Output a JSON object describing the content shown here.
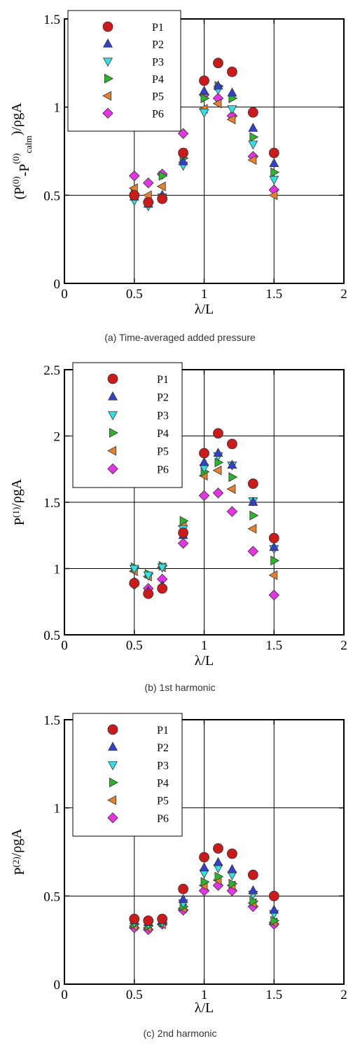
{
  "chart_data": [
    {
      "type": "scatter",
      "caption": "(a) Time-averaged added pressure",
      "xlabel": "λ/L",
      "ylabel": {
        "base": "(P",
        "sup1": "(0)",
        "mid": "-P",
        "sup2": "(0)",
        "sub": "calm",
        "tail": ")/ρgA"
      },
      "xlim": [
        0,
        2
      ],
      "ylim": [
        0,
        1.5
      ],
      "xticks": [
        {
          "v": 0,
          "label": "0"
        },
        {
          "v": 0.5,
          "label": "0.5"
        },
        {
          "v": 1,
          "label": "1"
        },
        {
          "v": 1.5,
          "label": "1.5"
        },
        {
          "v": 2,
          "label": "2"
        }
      ],
      "yticks": [
        {
          "v": 0,
          "label": "0"
        },
        {
          "v": 0.5,
          "label": "0.5"
        },
        {
          "v": 1,
          "label": "1"
        },
        {
          "v": 1.5,
          "label": "1.5"
        }
      ],
      "grid": true,
      "legend": "top-left",
      "x": [
        0.5,
        0.6,
        0.7,
        0.85,
        1.0,
        1.1,
        1.2,
        1.35,
        1.5
      ],
      "series": [
        {
          "name": "P1",
          "values": [
            0.5,
            0.46,
            0.48,
            0.74,
            1.15,
            1.25,
            1.2,
            0.97,
            0.74
          ]
        },
        {
          "name": "P2",
          "values": [
            0.49,
            0.45,
            0.5,
            0.69,
            1.09,
            1.12,
            1.08,
            0.88,
            0.68
          ]
        },
        {
          "name": "P3",
          "values": [
            0.47,
            0.44,
            0.49,
            0.67,
            0.97,
            1.1,
            0.99,
            0.79,
            0.59
          ]
        },
        {
          "name": "P4",
          "values": [
            0.51,
            0.46,
            0.61,
            0.71,
            1.05,
            1.12,
            1.05,
            0.83,
            0.63
          ]
        },
        {
          "name": "P5",
          "values": [
            0.54,
            0.5,
            0.55,
            0.74,
            0.99,
            1.02,
            0.93,
            0.7,
            0.5
          ]
        },
        {
          "name": "P6",
          "values": [
            0.61,
            0.57,
            0.62,
            0.85,
            1.07,
            1.05,
            0.95,
            0.72,
            0.53
          ]
        }
      ]
    },
    {
      "type": "scatter",
      "caption": "(b) 1st harmonic",
      "xlabel": "λ/L",
      "ylabel": {
        "base": "P",
        "sup1": "(1)",
        "tail": "/ρgA"
      },
      "xlim": [
        0,
        2
      ],
      "ylim": [
        0.5,
        2.5
      ],
      "xticks": [
        {
          "v": 0,
          "label": "0"
        },
        {
          "v": 0.5,
          "label": "0.5"
        },
        {
          "v": 1,
          "label": "1"
        },
        {
          "v": 1.5,
          "label": "1.5"
        },
        {
          "v": 2,
          "label": "2"
        }
      ],
      "yticks": [
        {
          "v": 0.5,
          "label": "0.5"
        },
        {
          "v": 1,
          "label": "1"
        },
        {
          "v": 1.5,
          "label": "1.5"
        },
        {
          "v": 2,
          "label": "2"
        },
        {
          "v": 2.5,
          "label": "2.5"
        }
      ],
      "grid": true,
      "legend": "top-left",
      "x": [
        0.5,
        0.6,
        0.7,
        0.85,
        1.0,
        1.1,
        1.2,
        1.35,
        1.5
      ],
      "series": [
        {
          "name": "P1",
          "values": [
            0.89,
            0.81,
            0.85,
            1.27,
            1.87,
            2.02,
            1.94,
            1.64,
            1.23
          ]
        },
        {
          "name": "P2",
          "values": [
            0.9,
            0.83,
            0.87,
            1.25,
            1.8,
            1.87,
            1.78,
            1.5,
            1.16
          ]
        },
        {
          "name": "P3",
          "values": [
            1.0,
            0.95,
            1.01,
            1.3,
            1.76,
            1.85,
            1.78,
            1.51,
            1.15
          ]
        },
        {
          "name": "P4",
          "values": [
            1.01,
            0.96,
            1.02,
            1.36,
            1.73,
            1.8,
            1.69,
            1.4,
            1.06
          ]
        },
        {
          "name": "P5",
          "values": [
            0.98,
            0.94,
            1.01,
            1.32,
            1.7,
            1.74,
            1.6,
            1.3,
            0.95
          ]
        },
        {
          "name": "P6",
          "values": [
            0.88,
            0.85,
            0.92,
            1.19,
            1.55,
            1.57,
            1.43,
            1.13,
            0.8
          ]
        }
      ]
    },
    {
      "type": "scatter",
      "caption": "(c) 2nd harmonic",
      "xlabel": "λ/L",
      "ylabel": {
        "base": "P",
        "sup1": "(2)",
        "tail": "/ρgA"
      },
      "xlim": [
        0,
        2
      ],
      "ylim": [
        0,
        1.5
      ],
      "xticks": [
        {
          "v": 0,
          "label": "0"
        },
        {
          "v": 0.5,
          "label": "0.5"
        },
        {
          "v": 1,
          "label": "1"
        },
        {
          "v": 1.5,
          "label": "1.5"
        },
        {
          "v": 2,
          "label": "2"
        }
      ],
      "yticks": [
        {
          "v": 0,
          "label": "0"
        },
        {
          "v": 0.5,
          "label": "0.5"
        },
        {
          "v": 1,
          "label": "1"
        },
        {
          "v": 1.5,
          "label": "1.5"
        }
      ],
      "grid": true,
      "legend": "top-left",
      "x": [
        0.5,
        0.6,
        0.7,
        0.85,
        1.0,
        1.1,
        1.2,
        1.35,
        1.5
      ],
      "series": [
        {
          "name": "P1",
          "values": [
            0.37,
            0.36,
            0.37,
            0.54,
            0.72,
            0.77,
            0.74,
            0.62,
            0.5
          ]
        },
        {
          "name": "P2",
          "values": [
            0.36,
            0.35,
            0.36,
            0.48,
            0.66,
            0.69,
            0.65,
            0.53,
            0.42
          ]
        },
        {
          "name": "P3",
          "values": [
            0.35,
            0.34,
            0.35,
            0.46,
            0.63,
            0.66,
            0.62,
            0.51,
            0.4
          ]
        },
        {
          "name": "P4",
          "values": [
            0.34,
            0.33,
            0.35,
            0.44,
            0.58,
            0.61,
            0.57,
            0.47,
            0.36
          ]
        },
        {
          "name": "P5",
          "values": [
            0.33,
            0.32,
            0.34,
            0.43,
            0.56,
            0.59,
            0.56,
            0.46,
            0.35
          ]
        },
        {
          "name": "P6",
          "values": [
            0.32,
            0.31,
            0.34,
            0.42,
            0.53,
            0.56,
            0.53,
            0.44,
            0.34
          ]
        }
      ]
    }
  ],
  "marker_styles": {
    "P1": {
      "shape": "circle",
      "fill": "#cc1a1a"
    },
    "P2": {
      "shape": "triangle-up",
      "fill": "#3340cc"
    },
    "P3": {
      "shape": "triangle-down",
      "fill": "#33e0e6"
    },
    "P4": {
      "shape": "triangle-right",
      "fill": "#2bb52b"
    },
    "P5": {
      "shape": "triangle-left",
      "fill": "#e6802e"
    },
    "P6": {
      "shape": "diamond",
      "fill": "#e633e6"
    }
  },
  "colors": {
    "axis": "#000000",
    "grid": "#000000",
    "marker_stroke": "#333333"
  }
}
